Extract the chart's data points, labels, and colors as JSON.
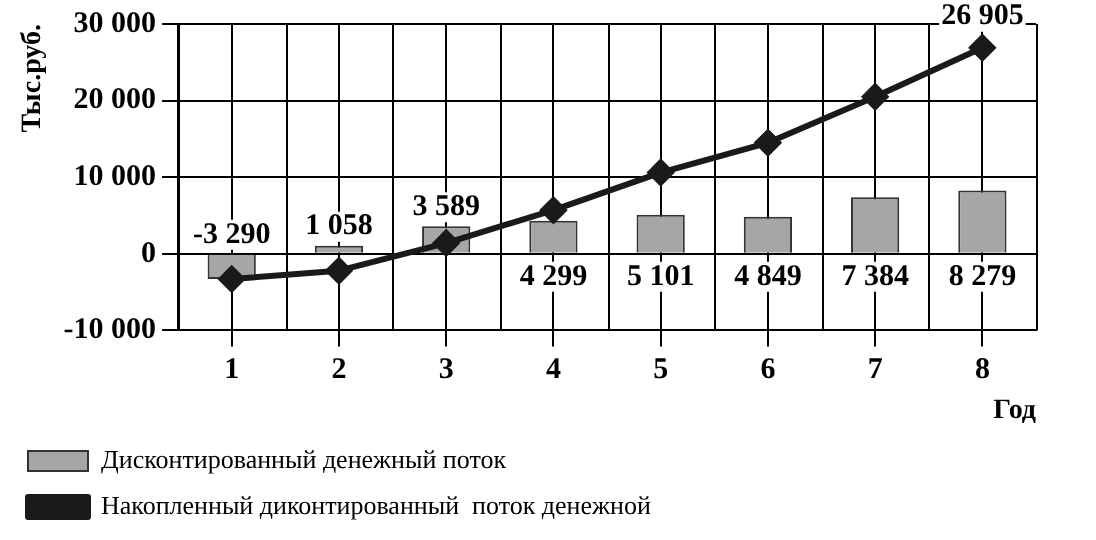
{
  "chart_data": {
    "type": "bar",
    "ylabel": "Тыс.руб.",
    "xlabel": "Год",
    "categories": [
      "1",
      "2",
      "3",
      "4",
      "5",
      "6",
      "7",
      "8"
    ],
    "series": [
      {
        "name": "Дисконтированный денежный поток",
        "color": "#a6a6a6",
        "values": [
          -3290,
          1058,
          3589,
          4299,
          5101,
          4849,
          7384,
          8279
        ],
        "value_labels": [
          "-3 290",
          "1 058",
          "3 589",
          "4 299",
          "5 101",
          "4 849",
          "7 384",
          "8 279"
        ]
      },
      {
        "name": "Накопленный диконтированный  поток денежной",
        "type": "line",
        "color": "#1a1a1a",
        "marker": "diamond",
        "line_style": "solid",
        "values": [
          -3300,
          -2200,
          1400,
          5700,
          10600,
          14500,
          20500,
          26905
        ],
        "value_labels": [
          null,
          null,
          null,
          null,
          null,
          null,
          null,
          "26 905"
        ]
      }
    ],
    "ylim": [
      -10000,
      30000
    ],
    "yticks": [
      {
        "value": -10000,
        "label": "-10 000"
      },
      0,
      {
        "value": 10000,
        "label": "10 000"
      },
      {
        "value": 20000,
        "label": "20 000"
      },
      {
        "value": 30000,
        "label": "30 000"
      }
    ],
    "grid": true,
    "legend": "bottom left"
  }
}
